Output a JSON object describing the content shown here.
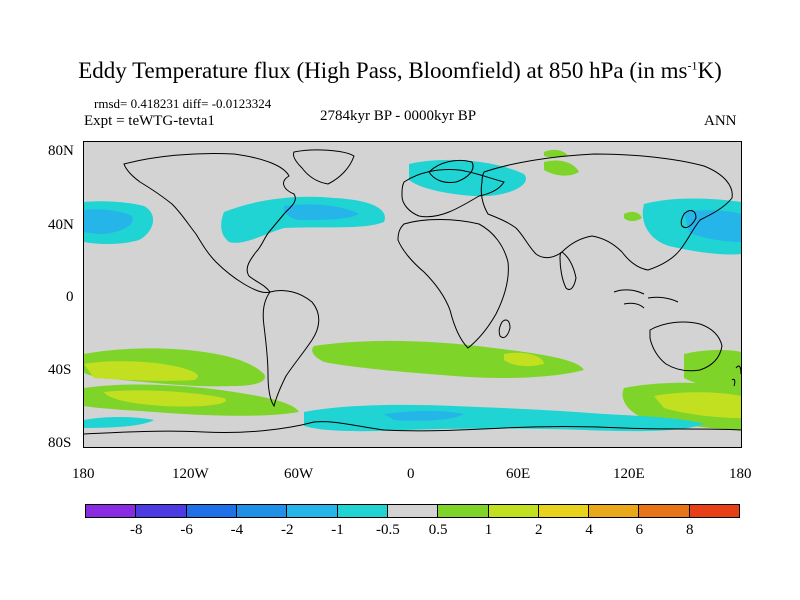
{
  "title_main": "Eddy Temperature flux (High Pass, Bloomfield) at 850 hPa (in ms",
  "title_sup": "-1",
  "title_end": "K)",
  "stats": "rmsd= 0.418231 diff= -0.0123324",
  "expt": "Expt = teWTG-tevta1",
  "period": "2784kyr BP - 0000kyr BP",
  "season": "ANN",
  "lat_labels": [
    "80N",
    "40N",
    "0",
    "40S",
    "80S"
  ],
  "lon_labels": [
    "180",
    "120W",
    "60W",
    "0",
    "60E",
    "120E",
    "180"
  ],
  "colorbar": {
    "colors": [
      "#8a2be2",
      "#4b3be0",
      "#1f6fe6",
      "#1e90e6",
      "#25b5e8",
      "#20d4d4",
      "#d3d3d3",
      "#7fd42a",
      "#c2e020",
      "#e8d21c",
      "#e8a81a",
      "#e8741a",
      "#e84016"
    ],
    "labels": [
      "-8",
      "-6",
      "-4",
      "-2",
      "-1",
      "-0.5",
      "0.5",
      "1",
      "2",
      "4",
      "6",
      "8"
    ]
  }
}
